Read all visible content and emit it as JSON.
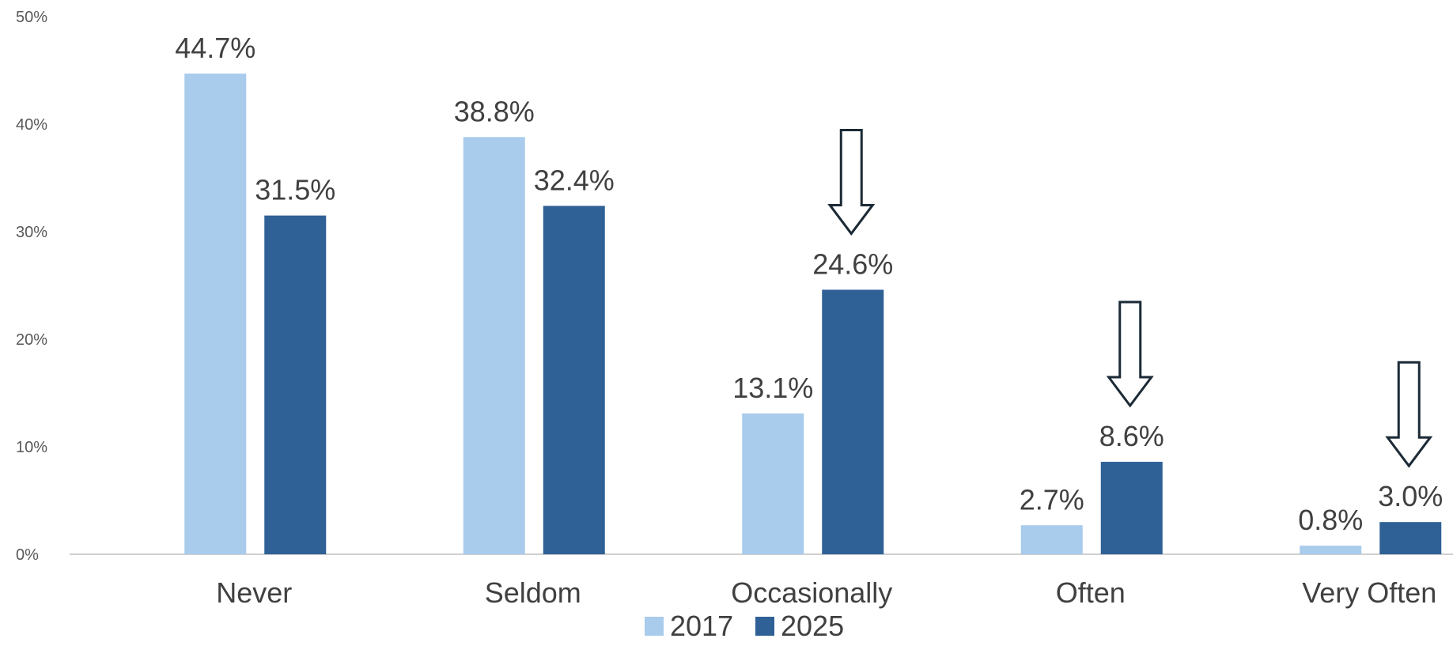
{
  "chart_data": {
    "type": "bar",
    "title": "",
    "xlabel": "",
    "ylabel": "",
    "categories": [
      "Never",
      "Seldom",
      "Occasionally",
      "Often",
      "Very Often"
    ],
    "series": [
      {
        "name": "2017",
        "color": "#A9CBEC",
        "values": [
          44.7,
          38.8,
          13.1,
          2.7,
          0.8
        ],
        "labels": [
          "44.7%",
          "38.8%",
          "13.1%",
          "2.7%",
          "0.8%"
        ]
      },
      {
        "name": "2025",
        "color": "#2F6096",
        "values": [
          31.5,
          32.4,
          24.6,
          8.6,
          3.0
        ],
        "labels": [
          "31.5%",
          "32.4%",
          "24.6%",
          "8.6%",
          "3.0%"
        ]
      }
    ],
    "ylim": [
      0,
      50
    ],
    "yticks": [
      0,
      10,
      20,
      30,
      40,
      50
    ],
    "ytick_labels": [
      "0%",
      "10%",
      "20%",
      "30%",
      "40%",
      "50%"
    ],
    "grid": false,
    "legend": "bottom",
    "annotations": {
      "arrow_categories": [
        "Occasionally",
        "Often",
        "Very Often"
      ],
      "arrow_stroke": "#1b2a36",
      "arrow_fill": "#ffffff"
    },
    "axis_color": "#bfbfbf"
  }
}
